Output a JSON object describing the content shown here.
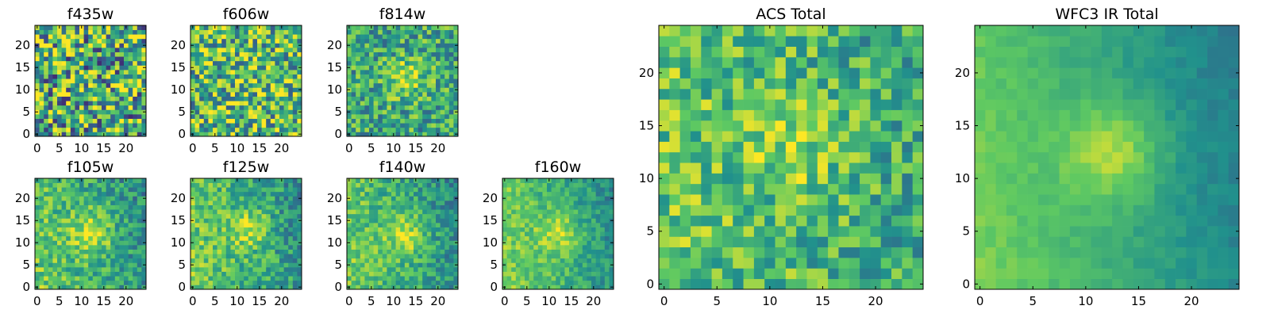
{
  "figure": {
    "colormap": "viridis",
    "colormap_stops": [
      "#440154",
      "#3b528b",
      "#21918c",
      "#5ec962",
      "#fde725"
    ],
    "background": "#ffffff"
  },
  "chart_data": [
    {
      "type": "heatmap",
      "title": "f435w",
      "grid_size": [
        25,
        25
      ],
      "xlim": [
        -0.5,
        24.5
      ],
      "ylim": [
        -0.5,
        24.5
      ],
      "xticks": [
        0,
        5,
        10,
        15,
        20
      ],
      "yticks": [
        0,
        5,
        10,
        15,
        20
      ],
      "pattern": "noise",
      "noise": 0.6,
      "center": [
        12.5,
        12.5
      ],
      "sigma": 3.5,
      "amp": 0.0,
      "base": 0.62,
      "gradient": 0.0,
      "seed": 11
    },
    {
      "type": "heatmap",
      "title": "f606w",
      "grid_size": [
        25,
        25
      ],
      "xlim": [
        -0.5,
        24.5
      ],
      "ylim": [
        -0.5,
        24.5
      ],
      "xticks": [
        0,
        5,
        10,
        15,
        20
      ],
      "yticks": [
        0,
        5,
        10,
        15,
        20
      ],
      "pattern": "noise",
      "noise": 0.5,
      "center": [
        12.5,
        12.5
      ],
      "sigma": 3.5,
      "amp": 0.05,
      "base": 0.68,
      "gradient": 0.0,
      "seed": 23
    },
    {
      "type": "heatmap",
      "title": "f814w",
      "grid_size": [
        25,
        25
      ],
      "xlim": [
        -0.5,
        24.5
      ],
      "ylim": [
        -0.5,
        24.5
      ],
      "xticks": [
        0,
        5,
        10,
        15,
        20
      ],
      "yticks": [
        0,
        5,
        10,
        15,
        20
      ],
      "pattern": "blob",
      "noise": 0.35,
      "center": [
        13,
        12.5
      ],
      "sigma": 3.0,
      "amp": 0.3,
      "base": 0.6,
      "gradient": 0.0,
      "seed": 37
    },
    {
      "type": "heatmap",
      "title": "f105w",
      "grid_size": [
        25,
        25
      ],
      "xlim": [
        -0.5,
        24.5
      ],
      "ylim": [
        -0.5,
        24.5
      ],
      "xticks": [
        0,
        5,
        10,
        15,
        20
      ],
      "yticks": [
        0,
        5,
        10,
        15,
        20
      ],
      "pattern": "blob",
      "noise": 0.25,
      "center": [
        12.5,
        12.5
      ],
      "sigma": 3.5,
      "amp": 0.3,
      "base": 0.6,
      "gradient": 0.45,
      "seed": 41
    },
    {
      "type": "heatmap",
      "title": "f125w",
      "grid_size": [
        25,
        25
      ],
      "xlim": [
        -0.5,
        24.5
      ],
      "ylim": [
        -0.5,
        24.5
      ],
      "xticks": [
        0,
        5,
        10,
        15,
        20
      ],
      "yticks": [
        0,
        5,
        10,
        15,
        20
      ],
      "pattern": "blob",
      "noise": 0.25,
      "center": [
        13,
        13
      ],
      "sigma": 3.2,
      "amp": 0.25,
      "base": 0.62,
      "gradient": 0.45,
      "seed": 53
    },
    {
      "type": "heatmap",
      "title": "f140w",
      "grid_size": [
        25,
        25
      ],
      "xlim": [
        -0.5,
        24.5
      ],
      "ylim": [
        -0.5,
        24.5
      ],
      "xticks": [
        0,
        5,
        10,
        15,
        20
      ],
      "yticks": [
        0,
        5,
        10,
        15,
        20
      ],
      "pattern": "blob",
      "noise": 0.22,
      "center": [
        13,
        12
      ],
      "sigma": 3.5,
      "amp": 0.28,
      "base": 0.6,
      "gradient": 0.5,
      "seed": 67
    },
    {
      "type": "heatmap",
      "title": "f160w",
      "grid_size": [
        25,
        25
      ],
      "xlim": [
        -0.5,
        24.5
      ],
      "ylim": [
        -0.5,
        24.5
      ],
      "xticks": [
        0,
        5,
        10,
        15,
        20
      ],
      "yticks": [
        0,
        5,
        10,
        15,
        20
      ],
      "pattern": "blob",
      "noise": 0.18,
      "center": [
        12.5,
        12
      ],
      "sigma": 3.5,
      "amp": 0.25,
      "base": 0.62,
      "gradient": 0.55,
      "seed": 79
    },
    {
      "type": "heatmap",
      "title": "ACS Total",
      "grid_size": [
        25,
        25
      ],
      "xlim": [
        -0.5,
        24.5
      ],
      "ylim": [
        -0.5,
        24.5
      ],
      "xticks": [
        0,
        5,
        10,
        15,
        20
      ],
      "yticks": [
        0,
        5,
        10,
        15,
        20
      ],
      "pattern": "blob",
      "noise": 0.3,
      "center": [
        12.5,
        13.5
      ],
      "sigma": 3.5,
      "amp": 0.18,
      "base": 0.66,
      "gradient": 0.25,
      "seed": 91
    },
    {
      "type": "heatmap",
      "title": "WFC3 IR Total",
      "grid_size": [
        25,
        25
      ],
      "xlim": [
        -0.5,
        24.5
      ],
      "ylim": [
        -0.5,
        24.5
      ],
      "xticks": [
        0,
        5,
        10,
        15,
        20
      ],
      "yticks": [
        0,
        5,
        10,
        15,
        20
      ],
      "pattern": "smooth",
      "noise": 0.06,
      "center": [
        12.5,
        12.5
      ],
      "sigma": 3.2,
      "amp": 0.28,
      "base": 0.58,
      "gradient": 0.6,
      "seed": 103
    }
  ]
}
